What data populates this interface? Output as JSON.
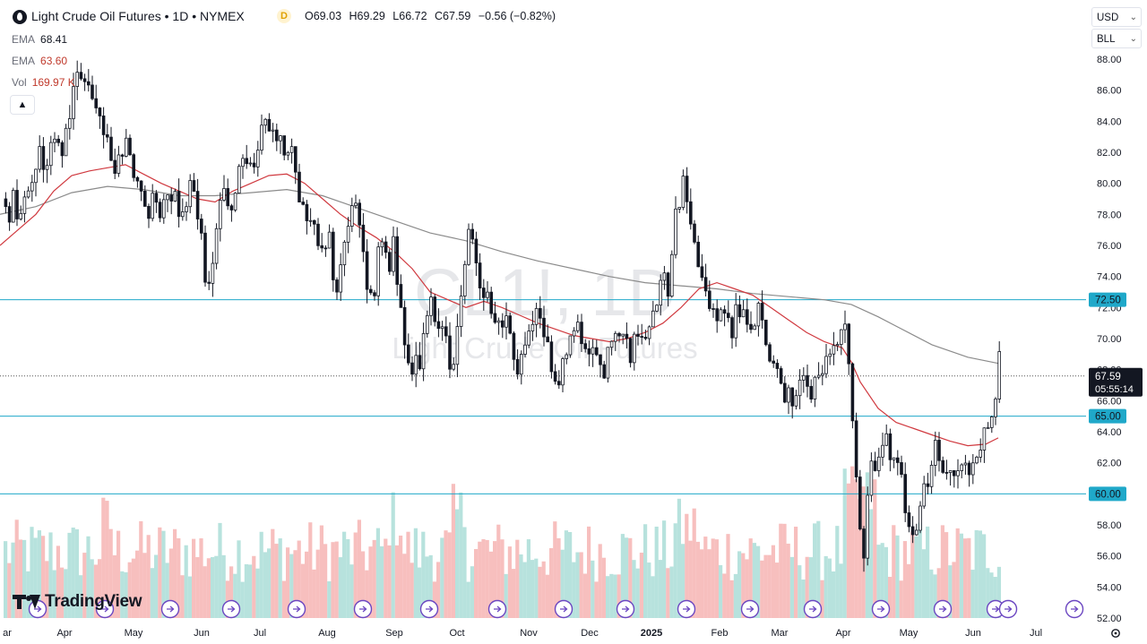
{
  "header": {
    "title": "Light Crude Oil Futures • 1D • NYMEX",
    "badge": "D",
    "ohlc": {
      "o_label": "O",
      "o": "69.03",
      "h_label": "H",
      "h": "69.29",
      "l_label": "L",
      "l": "66.72",
      "c_label": "C",
      "c": "67.59",
      "change": "−0.56 (−0.82%)"
    }
  },
  "indicators": [
    {
      "name": "EMA",
      "value": "68.41",
      "color": "#131722"
    },
    {
      "name": "EMA",
      "value": "63.60",
      "color": "#c0392b"
    },
    {
      "name": "Vol",
      "value": "169.97 K",
      "color": "#c0392b"
    }
  ],
  "controls": {
    "collapse_icon": "chevron-up-icon",
    "currency": "USD",
    "unit": "BLL"
  },
  "watermark": {
    "symbol": "CL1!, 1D",
    "name": "Light Crude Oil Futures"
  },
  "logo_text": "TradingView",
  "price_tag": {
    "price": "67.59",
    "countdown": "05:55:14",
    "color": "#131722"
  },
  "colors": {
    "up": "#131722",
    "down": "#131722",
    "ema_short": "#8b8b8b",
    "ema_long": "#d0393f",
    "hline": "#1fa8c9",
    "vol_up": "#9fd8d2",
    "vol_down": "#f4aaa8",
    "event_icon": "#6b46c1"
  },
  "chart_data": {
    "type": "candlestick",
    "title": "Light Crude Oil Futures",
    "ylim": [
      52,
      89
    ],
    "y_ticks": [
      88,
      86,
      84,
      82,
      80,
      78,
      76,
      74,
      72,
      70,
      68,
      66,
      64,
      62,
      60,
      58,
      56,
      54,
      52
    ],
    "x_ticks": [
      "ar",
      "Apr",
      "May",
      "Jun",
      "Jul",
      "Aug",
      "Sep",
      "Oct",
      "Nov",
      "Dec",
      "2025",
      "Feb",
      "Mar",
      "Apr",
      "May",
      "Jun",
      "Jul"
    ],
    "price_path": [
      [
        0,
        80
      ],
      [
        8,
        78
      ],
      [
        14,
        79
      ],
      [
        20,
        77.5
      ],
      [
        28,
        79
      ],
      [
        35,
        80
      ],
      [
        42,
        82
      ],
      [
        50,
        81
      ],
      [
        58,
        83
      ],
      [
        66,
        82
      ],
      [
        74,
        84
      ],
      [
        80,
        86
      ],
      [
        86,
        87
      ],
      [
        92,
        86
      ],
      [
        100,
        86.5
      ],
      [
        108,
        85
      ],
      [
        115,
        83
      ],
      [
        122,
        82
      ],
      [
        130,
        81
      ],
      [
        138,
        83
      ],
      [
        145,
        82
      ],
      [
        150,
        80
      ],
      [
        155,
        79
      ],
      [
        162,
        78
      ],
      [
        170,
        79
      ],
      [
        178,
        78.5
      ],
      [
        186,
        80
      ],
      [
        194,
        79
      ],
      [
        200,
        78
      ],
      [
        206,
        79
      ],
      [
        212,
        80.5
      ],
      [
        218,
        78
      ],
      [
        224,
        76
      ],
      [
        230,
        73
      ],
      [
        236,
        75
      ],
      [
        242,
        78
      ],
      [
        248,
        79
      ],
      [
        256,
        78
      ],
      [
        262,
        80
      ],
      [
        268,
        81
      ],
      [
        276,
        82
      ],
      [
        284,
        81
      ],
      [
        292,
        83.5
      ],
      [
        298,
        84
      ],
      [
        306,
        82
      ],
      [
        312,
        83
      ],
      [
        318,
        82
      ],
      [
        324,
        82.5
      ],
      [
        330,
        80
      ],
      [
        336,
        79
      ],
      [
        342,
        78
      ],
      [
        348,
        77
      ],
      [
        354,
        76
      ],
      [
        360,
        75
      ],
      [
        366,
        77
      ],
      [
        372,
        73
      ],
      [
        378,
        74
      ],
      [
        384,
        76
      ],
      [
        390,
        79.5
      ],
      [
        396,
        78
      ],
      [
        402,
        76
      ],
      [
        408,
        74
      ],
      [
        414,
        72
      ],
      [
        420,
        75
      ],
      [
        426,
        77
      ],
      [
        432,
        74
      ],
      [
        438,
        76
      ],
      [
        444,
        73
      ],
      [
        450,
        70
      ],
      [
        456,
        67
      ],
      [
        462,
        68
      ],
      [
        468,
        69
      ],
      [
        474,
        71
      ],
      [
        480,
        72
      ],
      [
        486,
        70
      ],
      [
        492,
        71
      ],
      [
        498,
        69
      ],
      [
        504,
        68
      ],
      [
        510,
        71
      ],
      [
        516,
        75
      ],
      [
        522,
        77
      ],
      [
        528,
        76
      ],
      [
        534,
        74
      ],
      [
        540,
        73
      ],
      [
        546,
        72
      ],
      [
        552,
        71
      ],
      [
        558,
        70
      ],
      [
        564,
        71.5
      ],
      [
        570,
        70
      ],
      [
        576,
        68
      ],
      [
        582,
        69
      ],
      [
        588,
        70
      ],
      [
        594,
        72
      ],
      [
        600,
        71
      ],
      [
        606,
        70
      ],
      [
        612,
        69
      ],
      [
        618,
        68
      ],
      [
        624,
        67.5
      ],
      [
        630,
        69
      ],
      [
        636,
        70
      ],
      [
        642,
        71
      ],
      [
        648,
        70
      ],
      [
        654,
        69
      ],
      [
        660,
        70
      ],
      [
        666,
        68.5
      ],
      [
        672,
        68
      ],
      [
        678,
        69
      ],
      [
        684,
        70
      ],
      [
        690,
        69.5
      ],
      [
        696,
        70.5
      ],
      [
        702,
        69
      ],
      [
        708,
        70
      ],
      [
        714,
        69.5
      ],
      [
        720,
        71
      ],
      [
        726,
        72
      ],
      [
        732,
        73
      ],
      [
        738,
        74
      ],
      [
        744,
        73
      ],
      [
        750,
        77
      ],
      [
        756,
        79
      ],
      [
        762,
        80
      ],
      [
        768,
        78
      ],
      [
        774,
        76
      ],
      [
        780,
        74
      ],
      [
        786,
        73
      ],
      [
        792,
        72
      ],
      [
        798,
        71.5
      ],
      [
        804,
        72.5
      ],
      [
        810,
        71
      ],
      [
        816,
        70.5
      ],
      [
        822,
        72
      ],
      [
        828,
        71.5
      ],
      [
        834,
        70.5
      ],
      [
        840,
        71
      ],
      [
        846,
        72
      ],
      [
        852,
        70
      ],
      [
        858,
        69
      ],
      [
        864,
        68
      ],
      [
        870,
        67
      ],
      [
        876,
        66
      ],
      [
        882,
        66.5
      ],
      [
        888,
        66
      ],
      [
        894,
        67
      ],
      [
        900,
        66.5
      ],
      [
        906,
        67
      ],
      [
        912,
        68
      ],
      [
        918,
        67.5
      ],
      [
        924,
        69
      ],
      [
        930,
        69.5
      ],
      [
        936,
        70
      ],
      [
        942,
        71.5
      ],
      [
        946,
        68
      ],
      [
        950,
        64
      ],
      [
        954,
        61
      ],
      [
        958,
        58
      ],
      [
        962,
        56
      ],
      [
        966,
        60
      ],
      [
        970,
        62
      ],
      [
        976,
        61
      ],
      [
        982,
        63
      ],
      [
        988,
        64
      ],
      [
        994,
        62
      ],
      [
        1000,
        63
      ],
      [
        1006,
        60
      ],
      [
        1012,
        58
      ],
      [
        1018,
        57
      ],
      [
        1024,
        58
      ],
      [
        1030,
        60
      ],
      [
        1036,
        61
      ],
      [
        1042,
        63
      ],
      [
        1048,
        62
      ],
      [
        1054,
        61.5
      ],
      [
        1060,
        62
      ],
      [
        1066,
        61
      ],
      [
        1072,
        62
      ],
      [
        1078,
        61
      ],
      [
        1084,
        62
      ],
      [
        1090,
        63
      ],
      [
        1096,
        63.5
      ],
      [
        1102,
        64.5
      ],
      [
        1106,
        65
      ],
      [
        1110,
        67
      ],
      [
        1114,
        68.5
      ],
      [
        1116,
        67.6
      ]
    ],
    "ema_long_path": [
      [
        0,
        76
      ],
      [
        20,
        77
      ],
      [
        40,
        78
      ],
      [
        60,
        79.5
      ],
      [
        80,
        80.5
      ],
      [
        100,
        80.8
      ],
      [
        120,
        81
      ],
      [
        140,
        81.2
      ],
      [
        160,
        80.6
      ],
      [
        180,
        80
      ],
      [
        200,
        79.5
      ],
      [
        220,
        79
      ],
      [
        240,
        78.8
      ],
      [
        260,
        79.5
      ],
      [
        280,
        80
      ],
      [
        300,
        80.5
      ],
      [
        320,
        80.6
      ],
      [
        340,
        80
      ],
      [
        360,
        79
      ],
      [
        380,
        78
      ],
      [
        400,
        77.2
      ],
      [
        420,
        76.5
      ],
      [
        440,
        75.6
      ],
      [
        460,
        74.5
      ],
      [
        480,
        73
      ],
      [
        500,
        72.5
      ],
      [
        520,
        72
      ],
      [
        540,
        72.4
      ],
      [
        560,
        72
      ],
      [
        580,
        71.5
      ],
      [
        600,
        71
      ],
      [
        620,
        70.6
      ],
      [
        640,
        70.2
      ],
      [
        660,
        70
      ],
      [
        680,
        69.8
      ],
      [
        700,
        70
      ],
      [
        720,
        70.4
      ],
      [
        740,
        71
      ],
      [
        760,
        72
      ],
      [
        780,
        73.2
      ],
      [
        800,
        73.6
      ],
      [
        820,
        73.2
      ],
      [
        840,
        72.8
      ],
      [
        860,
        72
      ],
      [
        880,
        71.2
      ],
      [
        900,
        70.4
      ],
      [
        920,
        69.8
      ],
      [
        940,
        69.4
      ],
      [
        950,
        68.5
      ],
      [
        960,
        67.2
      ],
      [
        980,
        65.5
      ],
      [
        1000,
        64.6
      ],
      [
        1020,
        64.2
      ],
      [
        1040,
        63.8
      ],
      [
        1060,
        63.4
      ],
      [
        1080,
        63.1
      ],
      [
        1100,
        63.2
      ],
      [
        1114,
        63.6
      ]
    ],
    "ema_short_path": [
      [
        0,
        78
      ],
      [
        40,
        78.5
      ],
      [
        80,
        79.4
      ],
      [
        120,
        79.8
      ],
      [
        160,
        79.6
      ],
      [
        200,
        79.2
      ],
      [
        240,
        79.2
      ],
      [
        280,
        79.4
      ],
      [
        320,
        79.6
      ],
      [
        360,
        79.2
      ],
      [
        400,
        78.4
      ],
      [
        440,
        77.6
      ],
      [
        480,
        76.8
      ],
      [
        520,
        76.3
      ],
      [
        560,
        75.6
      ],
      [
        600,
        75
      ],
      [
        640,
        74.5
      ],
      [
        680,
        74
      ],
      [
        720,
        73.6
      ],
      [
        760,
        73.4
      ],
      [
        800,
        73.2
      ],
      [
        840,
        72.9
      ],
      [
        880,
        72.7
      ],
      [
        920,
        72.5
      ],
      [
        950,
        72.2
      ],
      [
        980,
        71.4
      ],
      [
        1000,
        70.8
      ],
      [
        1040,
        69.6
      ],
      [
        1080,
        68.8
      ],
      [
        1114,
        68.4
      ]
    ],
    "support_lines": [
      {
        "price": 72.5,
        "label": "72.50"
      },
      {
        "price": 65.0,
        "label": "65.00"
      },
      {
        "price": 60.0,
        "label": "60.00"
      }
    ],
    "event_icon_x": [
      42,
      117,
      190,
      258,
      331,
      405,
      479,
      555,
      629,
      698,
      766,
      837,
      907,
      983,
      1052,
      1111,
      1125,
      1199
    ]
  }
}
